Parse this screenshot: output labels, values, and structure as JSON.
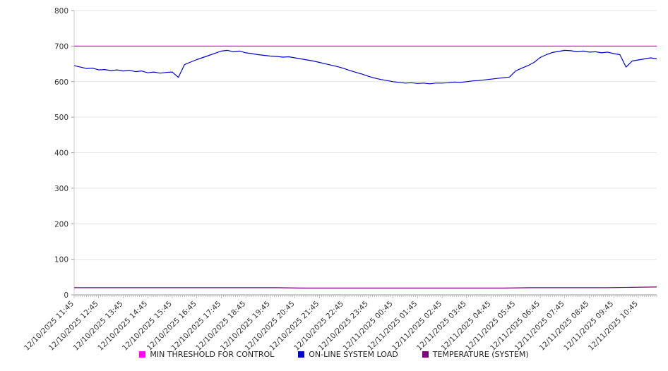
{
  "chart_data": {
    "type": "line",
    "title": "",
    "xlabel": "",
    "ylabel": "",
    "ylim": [
      0,
      800
    ],
    "ytick_step": 100,
    "grid": true,
    "legend_position": "bottom",
    "background": "#ffffff",
    "x_total_minutes": 1425,
    "x_minor_tick_minutes": 5,
    "x_labels": [
      "12/10/2025 11:45",
      "12/10/2025 12:45",
      "12/10/2025 13:45",
      "12/10/2025 14:45",
      "12/10/2025 15:45",
      "12/10/2025 16:45",
      "12/10/2025 17:45",
      "12/10/2025 18:45",
      "12/10/2025 19:45",
      "12/10/2025 20:45",
      "12/10/2025 21:45",
      "12/10/2025 22:45",
      "12/10/2025 23:45",
      "12/11/2025 00:45",
      "12/11/2025 01:45",
      "12/11/2025 02:45",
      "12/11/2025 03:45",
      "12/11/2025 04:45",
      "12/11/2025 05:45",
      "12/11/2025 06:45",
      "12/11/2025 07:45",
      "12/11/2025 08:45",
      "12/11/2025 09:45",
      "12/11/2025 10:45"
    ],
    "series": [
      {
        "name": "MIN THRESHOLD FOR CONTROL",
        "color": "#ff00ff",
        "values": [
          700,
          700
        ]
      },
      {
        "name": "ON-LINE SYSTEM LOAD",
        "color": "#0000cc",
        "values": [
          645,
          641,
          637,
          638,
          633,
          634,
          631,
          633,
          630,
          632,
          628,
          630,
          625,
          627,
          624,
          626,
          627,
          612,
          648,
          655,
          662,
          668,
          674,
          680,
          686,
          688,
          684,
          686,
          681,
          679,
          676,
          674,
          672,
          671,
          669,
          670,
          667,
          664,
          661,
          658,
          654,
          650,
          646,
          642,
          637,
          631,
          626,
          621,
          615,
          610,
          606,
          603,
          600,
          598,
          596,
          597,
          595,
          596,
          594,
          596,
          596,
          597,
          599,
          598,
          600,
          602,
          603,
          605,
          607,
          609,
          611,
          613,
          630,
          638,
          645,
          654,
          668,
          676,
          682,
          685,
          688,
          687,
          684,
          686,
          683,
          684,
          681,
          683,
          679,
          676,
          641,
          658,
          661,
          664,
          667,
          664
        ]
      },
      {
        "name": "TEMPERATURE (SYSTEM)",
        "color": "#800080",
        "values": [
          20,
          20,
          20,
          20,
          20,
          20,
          20,
          20,
          20,
          19,
          19,
          19,
          19,
          19,
          19,
          19,
          19,
          19,
          20,
          20,
          20,
          20,
          21,
          22
        ]
      }
    ],
    "y_tick_labels": [
      "0",
      "100",
      "200",
      "300",
      "400",
      "500",
      "600",
      "700",
      "800"
    ]
  }
}
